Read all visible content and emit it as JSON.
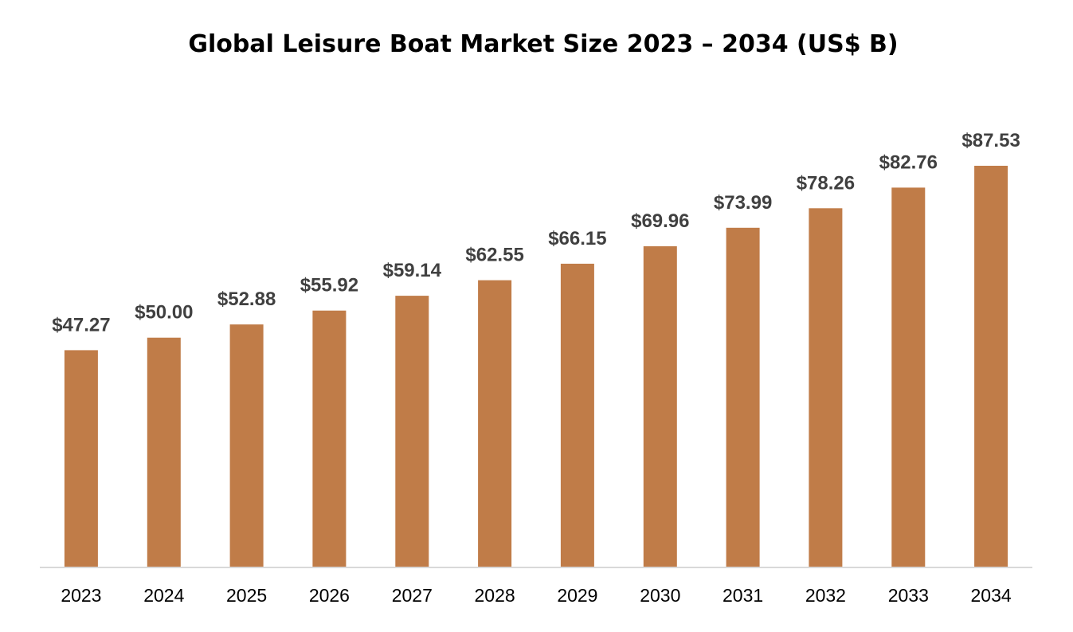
{
  "chart_data": {
    "type": "bar",
    "title": "Global Leisure Boat Market Size 2023 – 2034 (US$ B)",
    "xlabel": "",
    "ylabel": "",
    "categories": [
      "2023",
      "2024",
      "2025",
      "2026",
      "2027",
      "2028",
      "2029",
      "2030",
      "2031",
      "2032",
      "2033",
      "2034"
    ],
    "values": [
      47.27,
      50.0,
      52.88,
      55.92,
      59.14,
      62.55,
      66.15,
      69.96,
      73.99,
      78.26,
      82.76,
      87.53
    ],
    "data_labels": [
      "$47.27",
      "$50.00",
      "$52.88",
      "$55.92",
      "$59.14",
      "$62.55",
      "$66.15",
      "$69.96",
      "$73.99",
      "$78.26",
      "$82.76",
      "$87.53"
    ],
    "ylim": [
      0,
      87.53
    ],
    "grid": false,
    "legend": "none",
    "colors": {
      "bar": "#C07C48",
      "axis_line": "#D9D9D9",
      "data_label": "#404040",
      "tick_label": "#000000"
    }
  }
}
